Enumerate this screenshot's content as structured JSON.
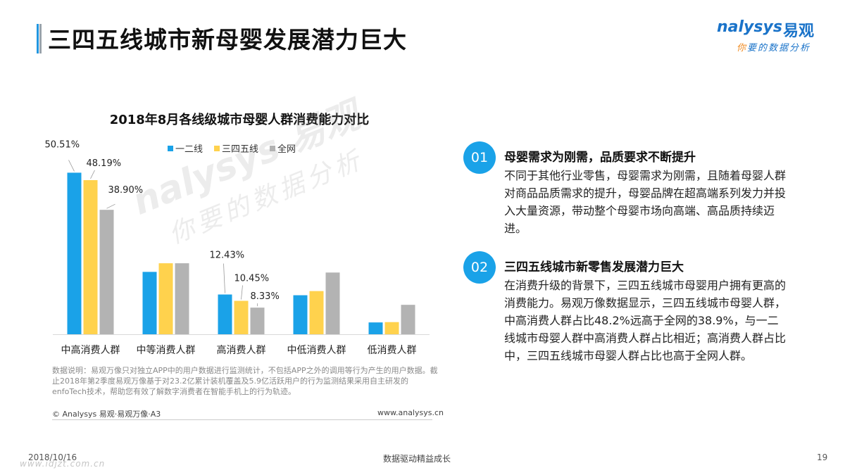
{
  "page": {
    "title": "三四五线城市新母婴发展潜力巨大",
    "logo": {
      "brand": "nalysys",
      "brand_cn": "易观",
      "tagline_first": "你",
      "tagline_rest": "要的数据分析"
    },
    "watermark": {
      "main": "nalysys 易观",
      "sub": "你要的数据分析"
    }
  },
  "chart_title": "2018年8月各线级城市母婴人群消费能力对比",
  "chart_data": {
    "type": "bar",
    "categories": [
      "中高消费人群",
      "中等消费人群",
      "高消费人群",
      "中低消费人群",
      "低消费人群"
    ],
    "series": [
      {
        "name": "一二线",
        "color": "#1aa2e8",
        "values": [
          50.51,
          19.5,
          12.43,
          12.2,
          3.7
        ]
      },
      {
        "name": "三四五线",
        "color": "#ffd24d",
        "values": [
          48.19,
          22.2,
          10.45,
          13.5,
          3.8
        ]
      },
      {
        "name": "全网",
        "color": "#b3b3b3",
        "values": [
          38.9,
          22.2,
          8.33,
          19.3,
          9.2
        ]
      }
    ],
    "data_labels": [
      {
        "category": 0,
        "series": 0,
        "text": "50.51%"
      },
      {
        "category": 0,
        "series": 1,
        "text": "48.19%"
      },
      {
        "category": 0,
        "series": 2,
        "text": "38.90%"
      },
      {
        "category": 2,
        "series": 0,
        "text": "12.43%"
      },
      {
        "category": 2,
        "series": 1,
        "text": "10.45%"
      },
      {
        "category": 2,
        "series": 2,
        "text": "8.33%"
      }
    ],
    "ylim": [
      0,
      55
    ],
    "legend": "top",
    "grid": false
  },
  "note": "数据说明：易观万像只对独立APP中的用户数据进行监测统计，不包括APP之外的调用等行为产生的用户数据。截止2018年第2季度易观万像基于对23.2亿累计装机覆盖及5.9亿活跃用户的行为监测结果采用自主研发的enfoTech技术，帮助您有效了解数字消费者在智能手机上的行为轨迹。",
  "source_left": "© Analysys 易观·易观万像·A3",
  "source_right": "www.analysys.cn",
  "points": [
    {
      "num": "01",
      "head": "母婴需求为刚需，品质要求不断提升",
      "body": "不同于其他行业零售，母婴需求为刚需，且随着母婴人群对商品品质需求的提升，母婴品牌在超高端系列发力并投入大量资源，带动整个母婴市场向高端、高品质持续迈进。"
    },
    {
      "num": "02",
      "head": "三四五线城市新零售发展潜力巨大",
      "body": "在消费升级的背景下，三四五线城市母婴用户拥有更高的消费能力。易观万像数据显示，三四五线城市母婴人群，中高消费人群占比48.2%远高于全网的38.9%，与一二线城市母婴人群中高消费人群占比相近；高消费人群占比中，三四五线城市母婴人群占比也高于全网人群。"
    }
  ],
  "footer": {
    "date": "2018/10/16",
    "center": "数据驱动精益成长",
    "page": "19",
    "watermark": "www.idjzt.com.cn"
  }
}
